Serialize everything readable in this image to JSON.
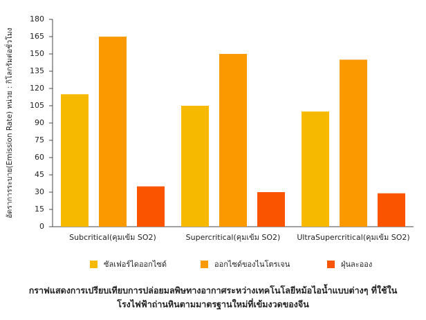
{
  "chart_data": {
    "type": "bar",
    "y_label": "อัตราการระบาย(Emission Rate) หน่วย : กิโลกรัมต่อชั่วโมง",
    "categories": [
      "Subcritical(คุมเข้ม SO2)",
      "Supercritical(คุมเข้ม SO2)",
      "UltraSupercritical(คุมเข้ม SO2)"
    ],
    "series": [
      {
        "name": "ซัลเฟอร์ไดออกไซด์",
        "color": "#f7b900",
        "values": [
          115,
          105,
          100
        ]
      },
      {
        "name": "ออกไซด์ของไนโตรเจน",
        "color": "#fa9a00",
        "values": [
          165,
          150,
          145
        ]
      },
      {
        "name": "ฝุ่นละออง",
        "color": "#fb5400",
        "values": [
          35,
          30,
          29
        ]
      }
    ],
    "ylim": [
      0,
      180
    ],
    "yticks": [
      0,
      15,
      30,
      45,
      60,
      75,
      90,
      105,
      120,
      135,
      150,
      165,
      180
    ],
    "grid": false,
    "legend": "bottom",
    "caption": [
      "กราฟแสดงการเปรียบเทียบการปล่อยมลพิษทางอากาศระหว่างเทคโนโลยีหม้อไอน้ำแบบต่างๆ ที่ใช้ใน",
      "โรงไฟฟ้าถ่านหินตามมาตรฐานใหม่ที่เข้มงวดของจีน"
    ]
  }
}
